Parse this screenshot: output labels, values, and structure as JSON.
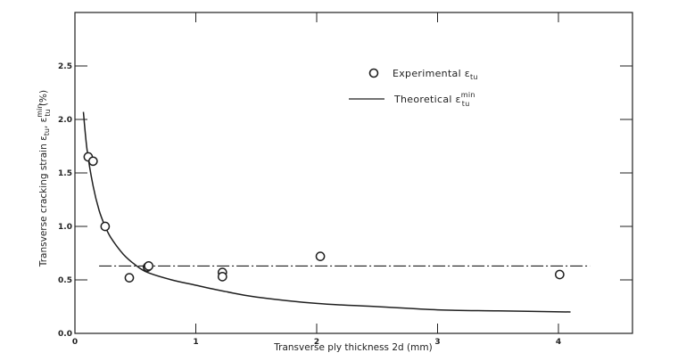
{
  "chart_data": {
    "type": "scatter",
    "title": "",
    "xlabel": "Transverse ply thickness 2d (mm)",
    "ylabel": "Transverse cracking strain εtu , εtu min (%)",
    "ylabel_parts": {
      "main": "Transverse cracking strain ε",
      "sub1": "tu",
      "sep": ", ε",
      "sup2": "min",
      "sub2": "tu",
      "unit": " (%)"
    },
    "xlim": [
      0,
      4.5
    ],
    "ylim": [
      0,
      3.0
    ],
    "x_ticks": [
      0,
      1,
      2,
      3,
      4
    ],
    "x_tick_labels": [
      "0",
      "1",
      "2",
      "3",
      "4"
    ],
    "y_ticks": [
      0.0,
      0.5,
      1.0,
      1.5,
      2.0,
      2.5
    ],
    "y_tick_labels": [
      "0.0",
      "0.5",
      "1.0",
      "1.5",
      "2.0",
      "2.5"
    ],
    "grid": false,
    "legend_position": "upper right",
    "series": [
      {
        "name": "Experimental εtu",
        "legend_main": "Experimental ε",
        "legend_sub": "tu",
        "legend_sup": "",
        "kind": "scatter",
        "marker": "open-circle",
        "x": [
          0.11,
          0.15,
          0.25,
          0.45,
          0.6,
          0.61,
          1.22,
          1.22,
          2.03,
          4.01
        ],
        "y": [
          1.65,
          1.61,
          1.0,
          0.52,
          0.62,
          0.63,
          0.57,
          0.53,
          0.72,
          0.55
        ]
      },
      {
        "name": "Theoretical εtu min",
        "legend_main": "Theoretical ε",
        "legend_sub": "tu",
        "legend_sup": "min",
        "kind": "line",
        "style": "solid",
        "x": [
          0.07,
          0.1,
          0.15,
          0.2,
          0.25,
          0.3,
          0.4,
          0.5,
          0.6,
          0.8,
          1.0,
          1.25,
          1.5,
          2.0,
          2.5,
          3.0,
          3.5,
          4.1
        ],
        "y": [
          2.07,
          1.72,
          1.38,
          1.15,
          1.0,
          0.89,
          0.74,
          0.64,
          0.57,
          0.5,
          0.45,
          0.39,
          0.34,
          0.28,
          0.25,
          0.22,
          0.21,
          0.2
        ]
      },
      {
        "name": "constant level",
        "kind": "line",
        "style": "dash-dot",
        "x": [
          0.2,
          4.26
        ],
        "y": [
          0.63,
          0.63
        ]
      }
    ],
    "colors": {
      "ink": "#1f1f1f",
      "background": "#ffffff"
    }
  }
}
